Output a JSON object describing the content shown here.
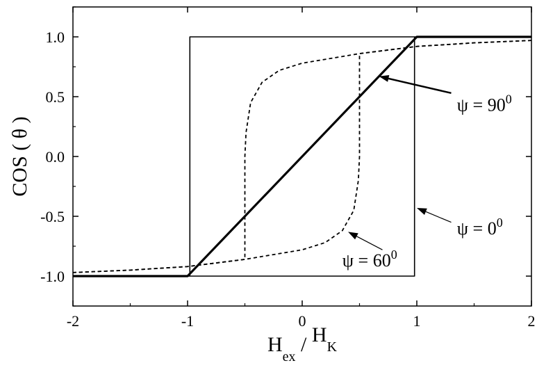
{
  "chart_data": {
    "type": "line",
    "title": "",
    "xlabel": "H_ex / H_K",
    "ylabel": "COS ( θ )",
    "xlim": [
      -2,
      2
    ],
    "ylim": [
      -1.25,
      1.25
    ],
    "x_ticks": [
      -2,
      -1,
      0,
      1,
      2
    ],
    "x_tick_labels": [
      "-2",
      "-1",
      "0",
      "1",
      "2"
    ],
    "y_ticks": [
      -1.0,
      -0.5,
      0.0,
      0.5,
      1.0
    ],
    "y_tick_labels": [
      "-1.0",
      "-0.5",
      "0.0",
      "0.5",
      "1.0"
    ],
    "grid": false,
    "series": [
      {
        "name": "ψ = 0⁰",
        "style": "thin-solid",
        "points": [
          [
            -2,
            -1
          ],
          [
            0.98,
            -1
          ],
          [
            0.98,
            1
          ],
          [
            2,
            1
          ],
          [
            -0.98,
            1
          ],
          [
            -0.98,
            -1
          ],
          [
            -2,
            -1
          ]
        ]
      },
      {
        "name": "ψ = 90⁰",
        "style": "thick-solid",
        "points": [
          [
            -2,
            -1
          ],
          [
            -1,
            -1
          ],
          [
            1,
            1
          ],
          [
            2,
            1
          ]
        ]
      },
      {
        "name": "ψ = 60⁰",
        "style": "dashed",
        "points": [
          [
            -2,
            -0.97
          ],
          [
            -1.5,
            -0.95
          ],
          [
            -1.0,
            -0.92
          ],
          [
            -0.5,
            -0.86
          ],
          [
            0,
            -0.78
          ],
          [
            0.2,
            -0.72
          ],
          [
            0.35,
            -0.62
          ],
          [
            0.45,
            -0.45
          ],
          [
            0.49,
            -0.2
          ],
          [
            0.5,
            0
          ],
          [
            0.5,
            0.86
          ],
          [
            1.0,
            0.92
          ],
          [
            1.5,
            0.95
          ],
          [
            2,
            0.97
          ]
        ],
        "points_reverse_branch": [
          [
            2,
            0.97
          ],
          [
            1.5,
            0.95
          ],
          [
            1.0,
            0.92
          ],
          [
            0.5,
            0.86
          ],
          [
            0,
            0.78
          ],
          [
            -0.2,
            0.72
          ],
          [
            -0.35,
            0.62
          ],
          [
            -0.45,
            0.45
          ],
          [
            -0.49,
            0.2
          ],
          [
            -0.5,
            0
          ],
          [
            -0.5,
            -0.86
          ],
          [
            -1.0,
            -0.92
          ],
          [
            -1.5,
            -0.95
          ],
          [
            -2,
            -0.97
          ]
        ]
      }
    ],
    "annotations": [
      {
        "id": "psi90",
        "psi": "ψ = 90",
        "sup": "0",
        "text_x": 1.35,
        "text_y": 0.38,
        "arrow_from": [
          1.3,
          0.53
        ],
        "arrow_to": [
          0.67,
          0.67
        ]
      },
      {
        "id": "psi0",
        "psi": "ψ = 0",
        "sup": "0",
        "text_x": 1.35,
        "text_y": -0.65,
        "arrow_from": [
          1.3,
          -0.55
        ],
        "arrow_to": [
          1.0,
          -0.43
        ]
      },
      {
        "id": "psi60",
        "psi": "ψ = 60",
        "sup": "0",
        "text_x": 0.35,
        "text_y": -0.92,
        "arrow_from": [
          0.7,
          -0.78
        ],
        "arrow_to": [
          0.4,
          -0.63
        ]
      }
    ]
  }
}
